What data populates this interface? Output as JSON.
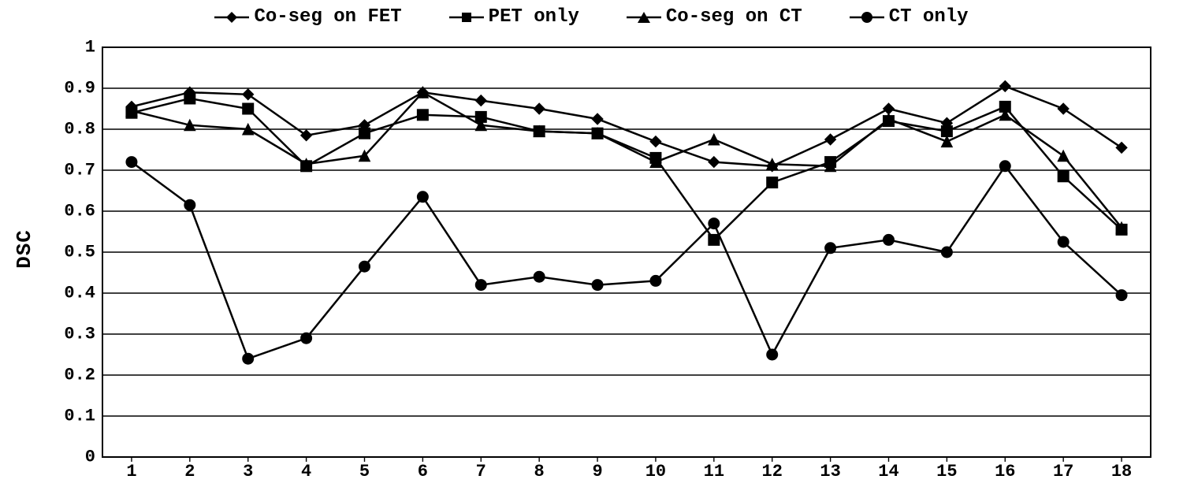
{
  "chart": {
    "type": "line",
    "ylabel": "DSC",
    "ylim": [
      0,
      1
    ],
    "ytick_step": 0.1,
    "yticks": [
      "0",
      "0.1",
      "0.2",
      "0.3",
      "0.4",
      "0.5",
      "0.6",
      "0.7",
      "0.8",
      "0.9",
      "1"
    ],
    "xticks": [
      "1",
      "2",
      "3",
      "4",
      "5",
      "6",
      "7",
      "8",
      "9",
      "10",
      "11",
      "12",
      "13",
      "14",
      "15",
      "16",
      "17",
      "18"
    ],
    "x_count": 18,
    "background_color": "#ffffff",
    "grid_color": "#000000",
    "line_color": "#000000",
    "line_width": 2.5,
    "marker_size": 7,
    "label_fontsize": 22,
    "legend_fontsize": 24,
    "aspect": [
      1501,
      632
    ],
    "series": [
      {
        "id": "coseg_fet",
        "label": "Co-seg on FET",
        "marker": "diamond",
        "values": [
          0.855,
          0.89,
          0.885,
          0.785,
          0.81,
          0.89,
          0.87,
          0.85,
          0.825,
          0.77,
          0.72,
          0.71,
          0.775,
          0.85,
          0.815,
          0.905,
          0.85,
          0.755
        ]
      },
      {
        "id": "pet_only",
        "label": "PET only",
        "marker": "square",
        "values": [
          0.84,
          0.875,
          0.85,
          0.71,
          0.79,
          0.835,
          0.83,
          0.795,
          0.79,
          0.73,
          0.53,
          0.67,
          0.72,
          0.82,
          0.795,
          0.855,
          0.685,
          0.555
        ]
      },
      {
        "id": "coseg_ct",
        "label": "Co-seg on CT",
        "marker": "triangle",
        "values": [
          0.845,
          0.81,
          0.8,
          0.715,
          0.735,
          0.89,
          0.81,
          0.795,
          0.79,
          0.72,
          0.775,
          0.715,
          0.71,
          0.825,
          0.77,
          0.835,
          0.735,
          0.56
        ]
      },
      {
        "id": "ct_only",
        "label": "CT only",
        "marker": "circle",
        "values": [
          0.72,
          0.615,
          0.24,
          0.29,
          0.465,
          0.635,
          0.42,
          0.44,
          0.42,
          0.43,
          0.57,
          0.25,
          0.51,
          0.53,
          0.5,
          0.71,
          0.525,
          0.395
        ]
      }
    ]
  }
}
